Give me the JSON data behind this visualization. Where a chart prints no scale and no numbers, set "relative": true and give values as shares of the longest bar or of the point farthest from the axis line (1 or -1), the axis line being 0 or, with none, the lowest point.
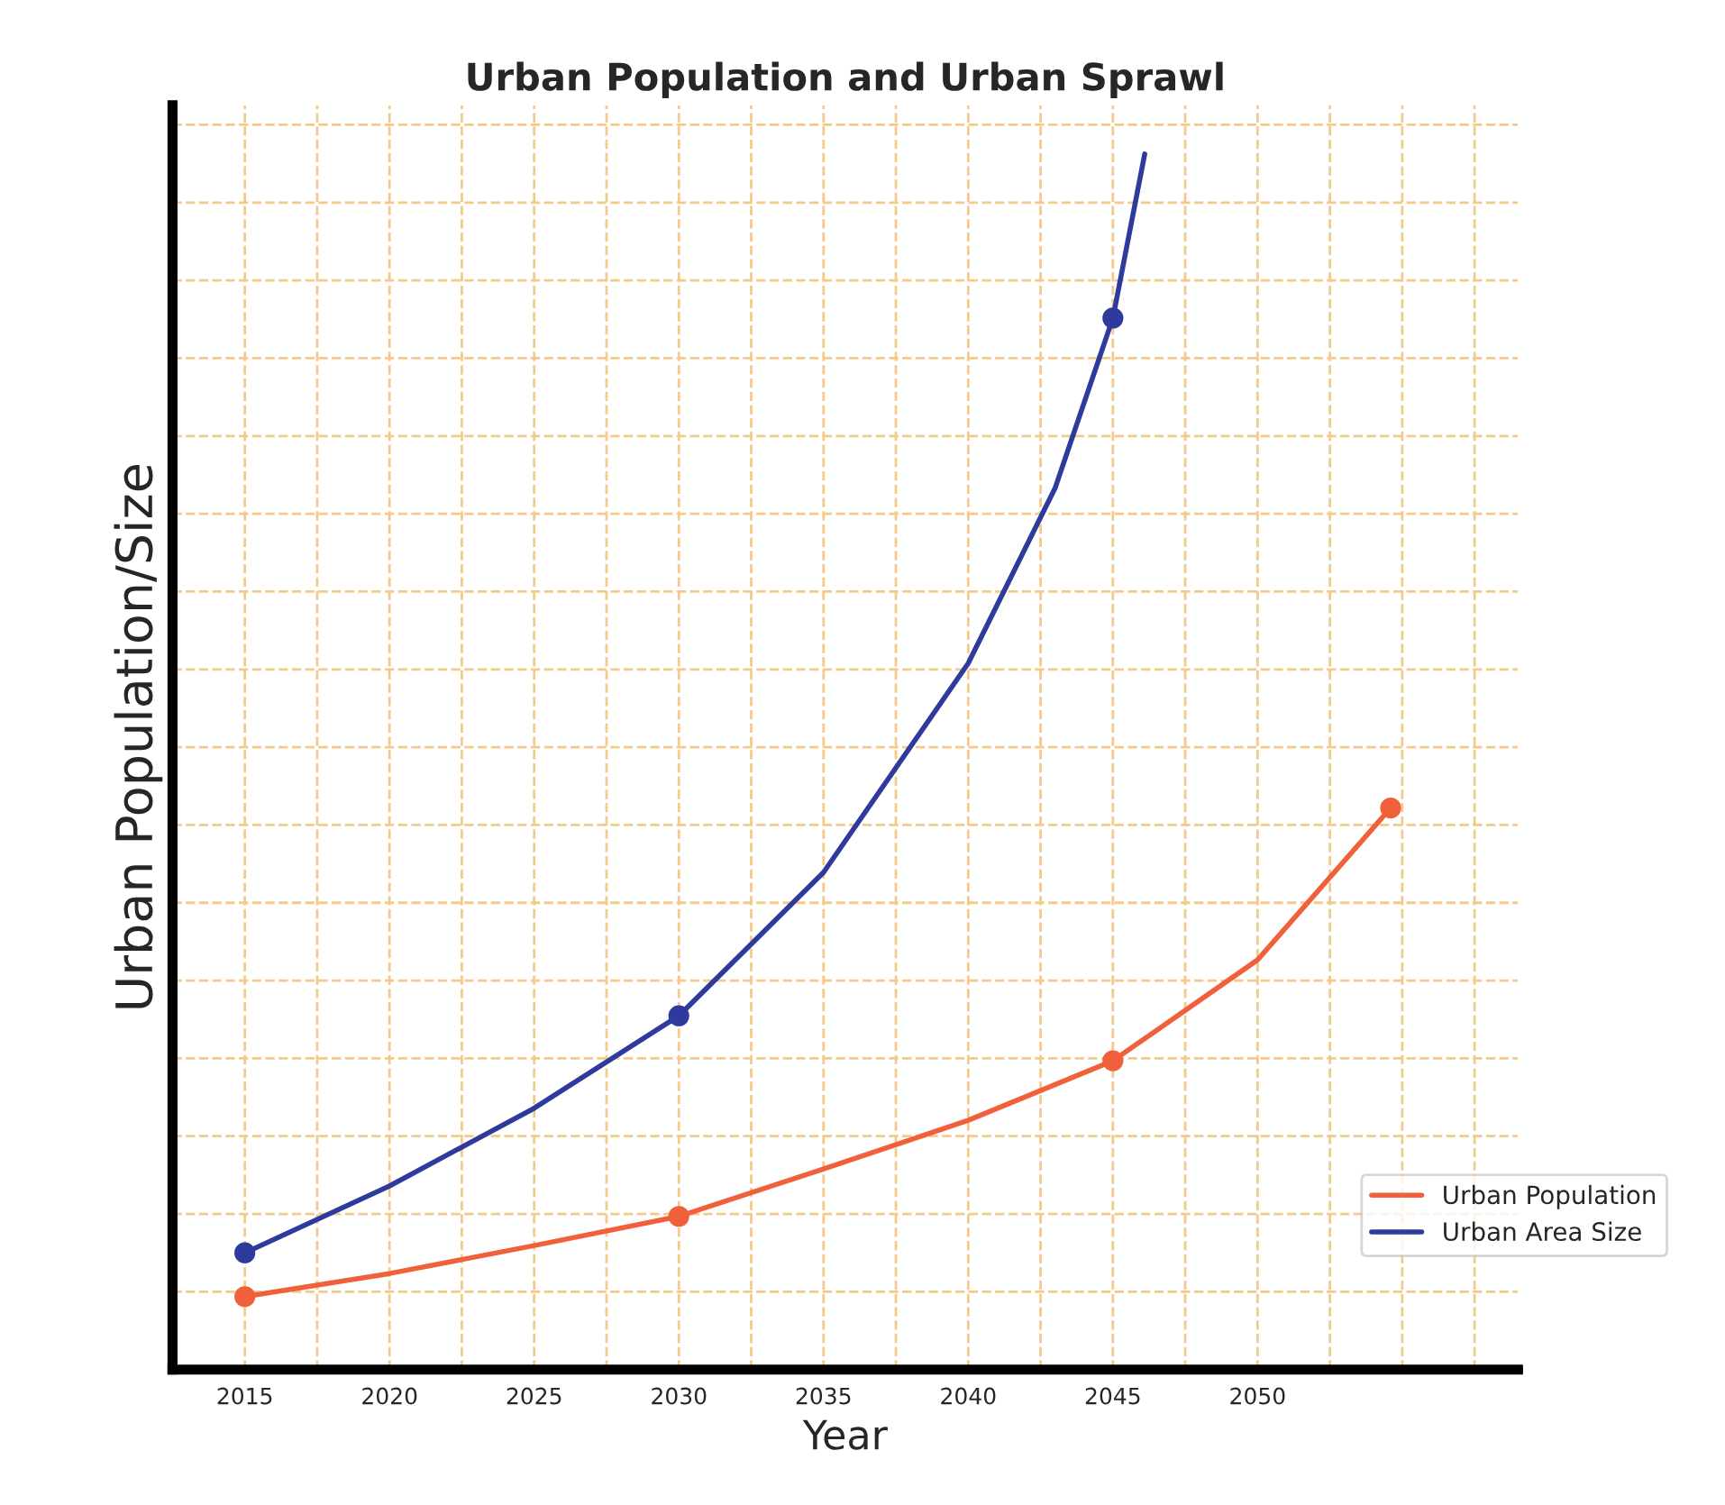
{
  "chart_data": {
    "type": "line",
    "title": "Urban Population and Urban Sprawl",
    "xlabel": "Year",
    "ylabel": "Urban Population/Size",
    "relative": true,
    "xlim": [
      2012.5,
      2059
    ],
    "xticks": [
      2015,
      2020,
      2025,
      2030,
      2035,
      2040,
      2045,
      2050
    ],
    "grid": true,
    "legend": "bottom right",
    "series": [
      {
        "name": "Urban Population",
        "color": "#f0603a",
        "x": [
          2015,
          2020,
          2025,
          2030,
          2035,
          2040,
          2045,
          2050,
          2054.6
        ],
        "values": [
          0.06,
          0.079,
          0.102,
          0.126,
          0.165,
          0.205,
          0.254,
          0.337,
          0.462
        ],
        "marker": "none"
      },
      {
        "name": "Urban Area Size",
        "color": "#2e3a9c",
        "x": [
          2015,
          2020,
          2025,
          2030,
          2035,
          2040,
          2043,
          2045,
          2046.1
        ],
        "values": [
          0.096,
          0.151,
          0.215,
          0.291,
          0.409,
          0.581,
          0.725,
          0.865,
          1.0
        ],
        "marker": "none"
      },
      {
        "type": "scatter",
        "color": "#f0603a",
        "x": [
          2015,
          2030,
          2045,
          2054.6
        ],
        "values": [
          0.06,
          0.126,
          0.254,
          0.462
        ],
        "marker": "circle"
      },
      {
        "type": "scatter",
        "color": "#2e3a9c",
        "x": [
          2015,
          2030,
          2045
        ],
        "values": [
          0.096,
          0.291,
          0.865
        ],
        "marker": "circle"
      }
    ]
  }
}
